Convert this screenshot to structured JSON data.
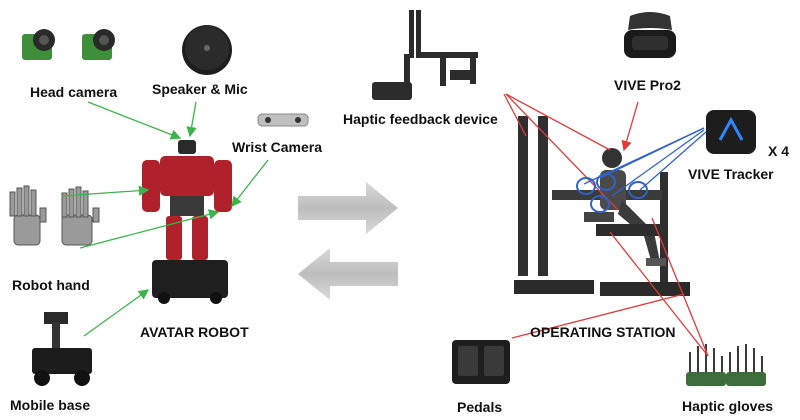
{
  "labels": {
    "head_camera": "Head camera",
    "speaker_mic": "Speaker & Mic",
    "wrist_camera": "Wrist Camera",
    "robot_hand": "Robot hand",
    "mobile_base": "Mobile base",
    "avatar_robot": "AVATAR ROBOT",
    "haptic_feedback_device": "Haptic feedback device",
    "vive_pro2": "VIVE Pro2",
    "vive_tracker": "VIVE Tracker",
    "tracker_count": "X 4",
    "operating_station": "OPERATING STATION",
    "pedals": "Pedals",
    "haptic_gloves": "Haptic gloves"
  },
  "colors": {
    "robot_links": "#3cb44b",
    "station_links": "#e03a3a",
    "tracker_links": "#2f62c9",
    "arrows": "#c8c8c8",
    "robot_body": "#b0222b"
  }
}
